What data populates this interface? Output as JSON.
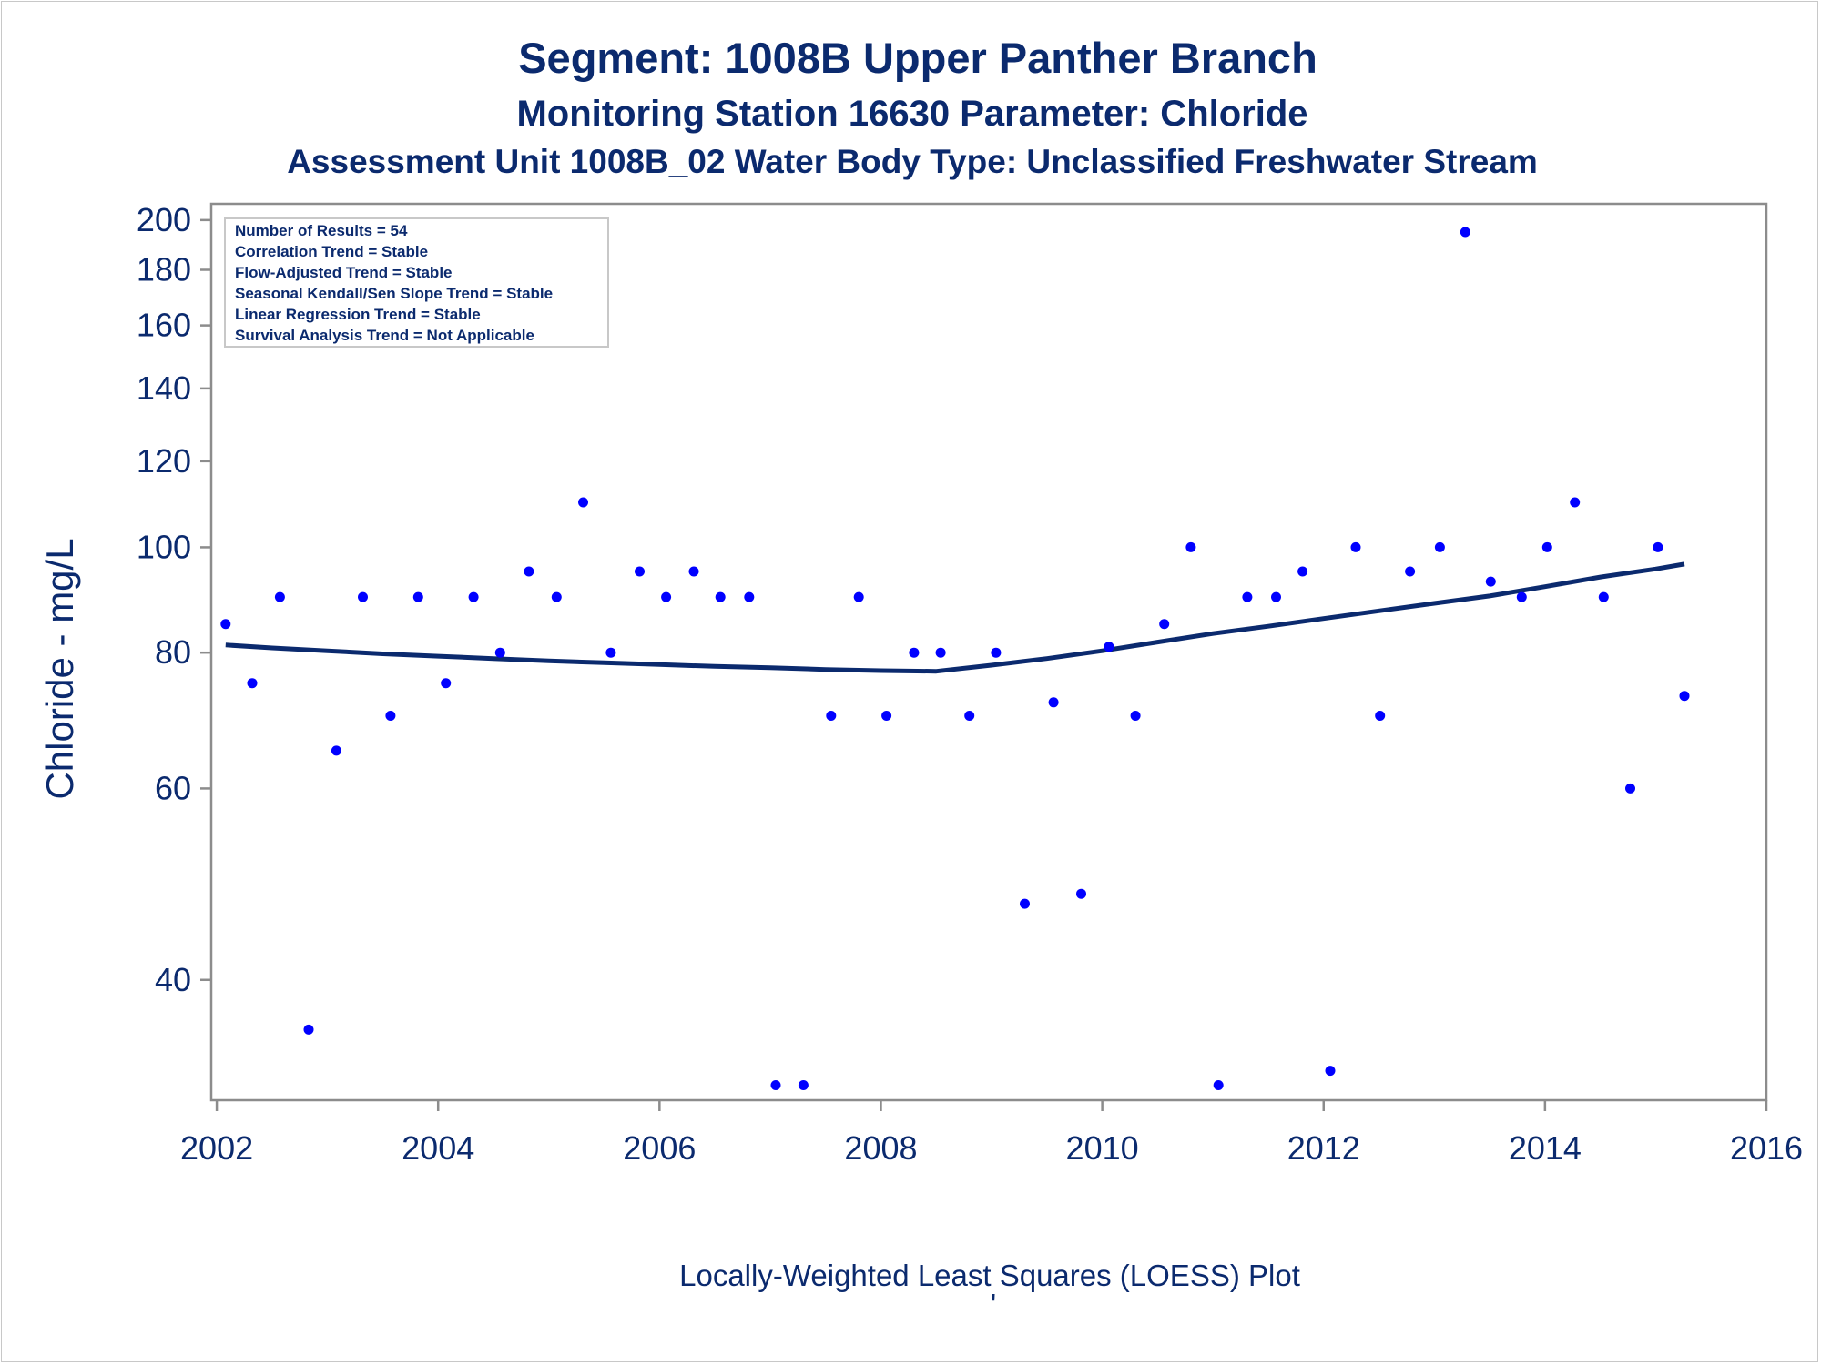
{
  "chart_data": {
    "type": "scatter",
    "title": "Segment: 1008B  Upper Panther Branch",
    "subtitle": "Monitoring Station 16630 Parameter: Chloride",
    "subtitle2": "Assessment Unit 1008B_02   Water Body Type: Unclassified Freshwater Stream",
    "ylabel": "Chloride - mg/L",
    "xlabel": "",
    "footnote": "Locally-Weighted Least Squares (LOESS) Plot",
    "footnote_mark": "'",
    "y_scale": "log",
    "xlim": [
      2001.95,
      2016.0
    ],
    "ylim": [
      31,
      207
    ],
    "x_ticks": [
      2002,
      2004,
      2006,
      2008,
      2010,
      2012,
      2014,
      2016
    ],
    "x_tick_labels": [
      "2002",
      "2004",
      "2006",
      "2008",
      "2010",
      "2012",
      "2014",
      "2016"
    ],
    "y_ticks": [
      40,
      60,
      80,
      100,
      120,
      140,
      160,
      180,
      200
    ],
    "y_tick_labels": [
      "40",
      "60",
      "80",
      "100",
      "120",
      "140",
      "160",
      "180",
      "200"
    ],
    "grid": false,
    "stats_box": {
      "placement": "top-left",
      "lines": [
        "Number of Results = 54",
        "Correlation Trend = Stable",
        "Flow-Adjusted Trend = Stable",
        "Seasonal Kendall/Sen Slope Trend = Stable",
        "Linear Regression Trend = Stable",
        "Survival Analysis Trend = Not Applicable"
      ]
    },
    "series": [
      {
        "kind": "points",
        "color": "#0000ff",
        "points": [
          [
            2002.08,
            85
          ],
          [
            2002.32,
            75
          ],
          [
            2002.57,
            90
          ],
          [
            2002.83,
            36
          ],
          [
            2003.08,
            65
          ],
          [
            2003.32,
            90
          ],
          [
            2003.57,
            70
          ],
          [
            2003.82,
            90
          ],
          [
            2004.07,
            75
          ],
          [
            2004.32,
            90
          ],
          [
            2004.56,
            80
          ],
          [
            2004.82,
            95
          ],
          [
            2005.07,
            90
          ],
          [
            2005.31,
            110
          ],
          [
            2005.56,
            80
          ],
          [
            2005.82,
            95
          ],
          [
            2006.06,
            90
          ],
          [
            2006.31,
            95
          ],
          [
            2006.55,
            90
          ],
          [
            2006.81,
            90
          ],
          [
            2007.05,
            32
          ],
          [
            2007.3,
            32
          ],
          [
            2007.55,
            70
          ],
          [
            2007.8,
            90
          ],
          [
            2008.05,
            70
          ],
          [
            2008.3,
            80
          ],
          [
            2008.54,
            80
          ],
          [
            2008.8,
            70
          ],
          [
            2009.04,
            80
          ],
          [
            2009.3,
            47
          ],
          [
            2009.56,
            72
          ],
          [
            2009.81,
            48
          ],
          [
            2010.06,
            81
          ],
          [
            2010.3,
            70
          ],
          [
            2010.56,
            85
          ],
          [
            2010.8,
            100
          ],
          [
            2011.05,
            32
          ],
          [
            2011.31,
            90
          ],
          [
            2011.57,
            90
          ],
          [
            2011.81,
            95
          ],
          [
            2012.06,
            33
          ],
          [
            2012.29,
            100
          ],
          [
            2012.51,
            70
          ],
          [
            2012.78,
            95
          ],
          [
            2013.05,
            100
          ],
          [
            2013.28,
            195
          ],
          [
            2013.51,
            93
          ],
          [
            2013.79,
            90
          ],
          [
            2014.02,
            100
          ],
          [
            2014.27,
            110
          ],
          [
            2014.53,
            90
          ],
          [
            2014.77,
            60
          ],
          [
            2015.02,
            100
          ],
          [
            2015.26,
            73
          ]
        ]
      },
      {
        "kind": "loess-line",
        "color": "#0b2a6e",
        "points": [
          [
            2002.08,
            81.3
          ],
          [
            2002.5,
            80.8
          ],
          [
            2003.0,
            80.3
          ],
          [
            2003.5,
            79.8
          ],
          [
            2004.0,
            79.4
          ],
          [
            2004.5,
            79.0
          ],
          [
            2005.0,
            78.6
          ],
          [
            2005.5,
            78.3
          ],
          [
            2006.0,
            78.0
          ],
          [
            2006.5,
            77.7
          ],
          [
            2007.0,
            77.5
          ],
          [
            2007.5,
            77.2
          ],
          [
            2008.0,
            77.0
          ],
          [
            2008.5,
            76.9
          ],
          [
            2009.0,
            77.9
          ],
          [
            2009.5,
            79.0
          ],
          [
            2010.0,
            80.3
          ],
          [
            2010.5,
            81.8
          ],
          [
            2011.0,
            83.3
          ],
          [
            2011.5,
            84.6
          ],
          [
            2012.0,
            86.0
          ],
          [
            2012.5,
            87.4
          ],
          [
            2013.0,
            88.8
          ],
          [
            2013.5,
            90.2
          ],
          [
            2014.0,
            92.0
          ],
          [
            2014.5,
            93.9
          ],
          [
            2015.0,
            95.5
          ],
          [
            2015.26,
            96.5
          ]
        ]
      }
    ]
  }
}
